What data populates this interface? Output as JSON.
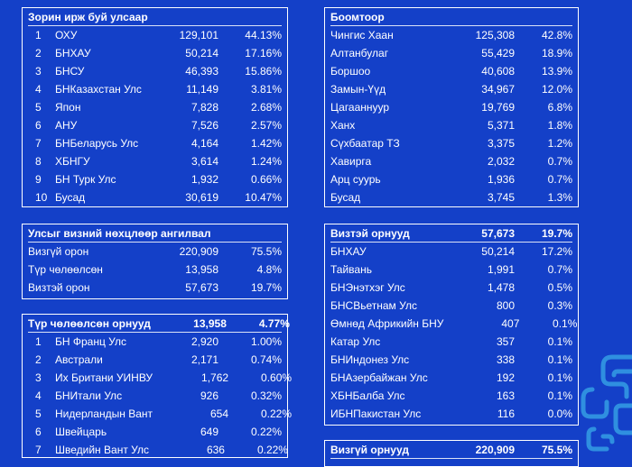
{
  "left_top": {
    "title": "Зорин ирж буй улсаар",
    "rows": [
      {
        "n": "1",
        "name": "ОХУ",
        "value": "129,101",
        "pct": "44.13%"
      },
      {
        "n": "2",
        "name": "БНХАУ",
        "value": "50,214",
        "pct": "17.16%"
      },
      {
        "n": "3",
        "name": "БНСУ",
        "value": "46,393",
        "pct": "15.86%"
      },
      {
        "n": "4",
        "name": "БНКазахстан Улс",
        "value": "11,149",
        "pct": "3.81%"
      },
      {
        "n": "5",
        "name": "Япон",
        "value": "7,828",
        "pct": "2.68%"
      },
      {
        "n": "6",
        "name": "АНУ",
        "value": "7,526",
        "pct": "2.57%"
      },
      {
        "n": "7",
        "name": "БНБеларусь Улс",
        "value": "4,164",
        "pct": "1.42%"
      },
      {
        "n": "8",
        "name": "ХБНГУ",
        "value": "3,614",
        "pct": "1.24%"
      },
      {
        "n": "9",
        "name": "БН Турк Улс",
        "value": "1,932",
        "pct": "0.66%"
      },
      {
        "n": "10",
        "name": "Бусад",
        "value": "30,619",
        "pct": "10.47%"
      }
    ]
  },
  "right_top": {
    "title": "Боомтоор",
    "rows": [
      {
        "name": "Чингис Хаан",
        "value": "125,308",
        "pct": "42.8%"
      },
      {
        "name": "Алтанбулаг",
        "value": "55,429",
        "pct": "18.9%"
      },
      {
        "name": "Боршоо",
        "value": "40,608",
        "pct": "13.9%"
      },
      {
        "name": "Замын-Үүд",
        "value": "34,967",
        "pct": "12.0%"
      },
      {
        "name": "Цагааннуур",
        "value": "19,769",
        "pct": "6.8%"
      },
      {
        "name": "Ханх",
        "value": "5,371",
        "pct": "1.8%"
      },
      {
        "name": "Сүхбаатар ТЗ",
        "value": "3,375",
        "pct": "1.2%"
      },
      {
        "name": "Хавирга",
        "value": "2,032",
        "pct": "0.7%"
      },
      {
        "name": "Арц суурь",
        "value": "1,936",
        "pct": "0.7%"
      },
      {
        "name": "Бусад",
        "value": "3,745",
        "pct": "1.3%"
      }
    ]
  },
  "left_mid": {
    "title": "Улсыг визний нөхцлөөр ангилвал",
    "rows": [
      {
        "name": "Визгүй орон",
        "value": "220,909",
        "pct": "75.5%"
      },
      {
        "name": "Түр чөлөөлсөн",
        "value": "13,958",
        "pct": "4.8%"
      },
      {
        "name": "Визтэй орон",
        "value": "57,673",
        "pct": "19.7%"
      }
    ]
  },
  "left_bottom": {
    "title": "Түр чөлөөлсөн орнууд",
    "title_value": "13,958",
    "title_pct": "4.77%",
    "rows": [
      {
        "n": "1",
        "name": "БН Франц Улс",
        "value": "2,920",
        "pct": "1.00%"
      },
      {
        "n": "2",
        "name": "Австрали",
        "value": "2,171",
        "pct": "0.74%"
      },
      {
        "n": "3",
        "name": "Их Британи УИНВУ",
        "value": "1,762",
        "pct": "0.60%"
      },
      {
        "n": "4",
        "name": "БНИтали Улс",
        "value": "926",
        "pct": "0.32%"
      },
      {
        "n": "5",
        "name": "Нидерландын Вант",
        "value": "654",
        "pct": "0.22%"
      },
      {
        "n": "6",
        "name": "Швейцарь",
        "value": "649",
        "pct": "0.22%"
      },
      {
        "n": "7",
        "name": "Шведийн Вант Улс",
        "value": "636",
        "pct": "0.22%"
      }
    ]
  },
  "right_mid": {
    "title": "Визтэй орнууд",
    "title_value": "57,673",
    "title_pct": "19.7%",
    "rows": [
      {
        "name": "БНХАУ",
        "value": "50,214",
        "pct": "17.2%"
      },
      {
        "name": "Тайвань",
        "value": "1,991",
        "pct": "0.7%"
      },
      {
        "name": "БНЭнэтхэг Улс",
        "value": "1,478",
        "pct": "0.5%"
      },
      {
        "name": "БНСВьетнам Улс",
        "value": "800",
        "pct": "0.3%"
      },
      {
        "name": "Өмнөд Африкийн БНУ",
        "value": "407",
        "pct": "0.1%"
      },
      {
        "name": "Катар Улс",
        "value": "357",
        "pct": "0.1%"
      },
      {
        "name": "БНИндонез Улс",
        "value": "338",
        "pct": "0.1%"
      },
      {
        "name": "БНАзербайжан Улс",
        "value": "192",
        "pct": "0.1%"
      },
      {
        "name": "ХБНБалба Улс",
        "value": "163",
        "pct": "0.1%"
      },
      {
        "name": "ИБНПакистан Улс",
        "value": "116",
        "pct": "0.0%"
      }
    ]
  },
  "right_bottom": {
    "title": "Визгүй орнууд",
    "title_value": "220,909",
    "title_pct": "75.5%"
  },
  "colors": {
    "background": "#1440c8",
    "border": "#ffffff",
    "decor": "#2f8fe0"
  },
  "icons": {
    "decor": "maze-pattern-decoration"
  }
}
